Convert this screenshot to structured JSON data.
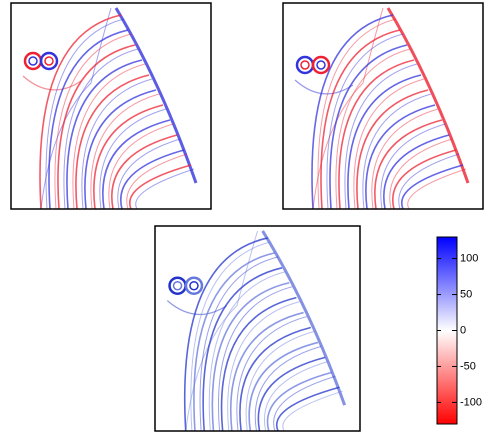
{
  "colorbar": {
    "range": [
      -130,
      130
    ],
    "ticks": [
      100,
      50,
      0,
      -50,
      -100
    ]
  }
}
